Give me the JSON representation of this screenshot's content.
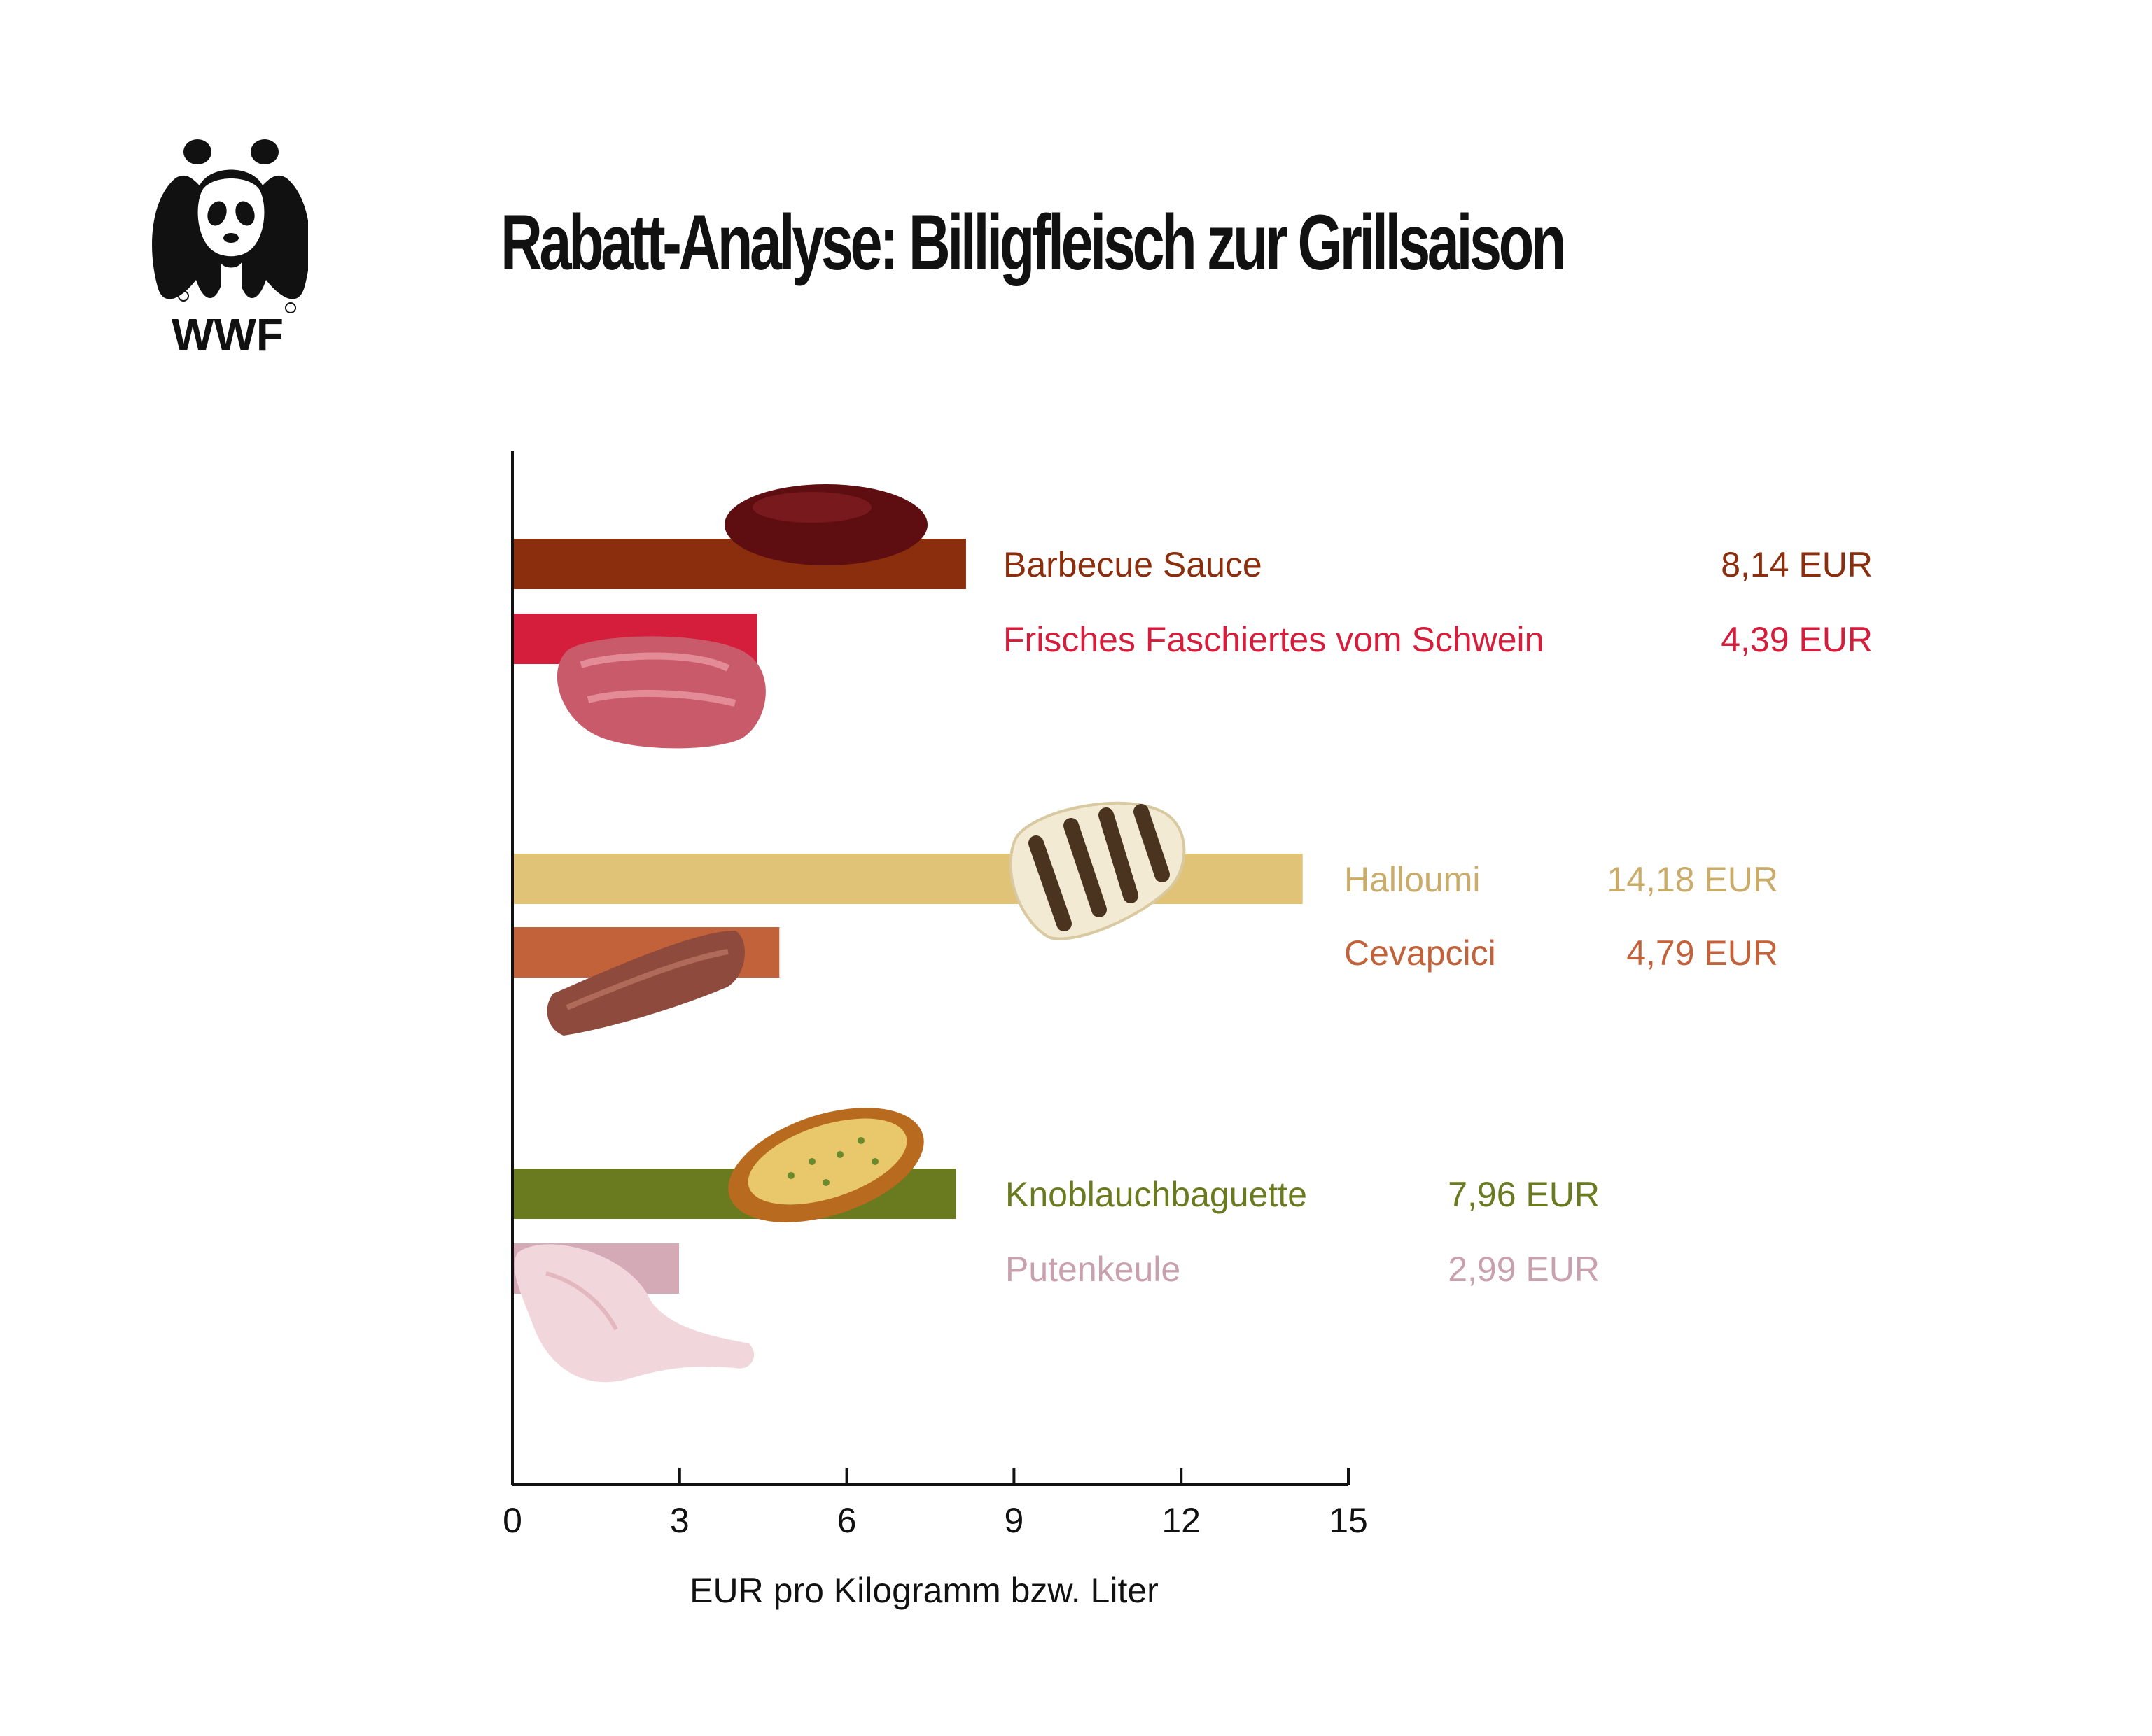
{
  "logo": {
    "text": "WWF",
    "icon": "panda-icon"
  },
  "chart_data": {
    "type": "bar",
    "orientation": "horizontal",
    "title": "Rabatt-Analyse: Billigfleisch zur Grillsaison",
    "xlabel": "EUR pro Kilogramm bzw. Liter",
    "ylabel": "",
    "xlim": [
      0,
      15
    ],
    "xticks": [
      "0",
      "3",
      "6",
      "9",
      "12",
      "15"
    ],
    "grid": false,
    "groups": [
      {
        "items": [
          {
            "label": "Barbecue Sauce",
            "value": 8.14,
            "value_label": "8,14 EUR",
            "color": "#8B2E0E",
            "image": "barbecue-sauce-icon"
          },
          {
            "label": "Frisches Faschiertes vom Schwein",
            "value": 4.39,
            "value_label": "4,39 EUR",
            "color": "#D51D3C",
            "image": "minced-pork-icon"
          }
        ]
      },
      {
        "items": [
          {
            "label": "Halloumi",
            "value": 14.18,
            "value_label": "14,18 EUR",
            "color": "#E0C377",
            "text_color": "#C9AB6A",
            "image": "halloumi-icon"
          },
          {
            "label": "Cevapcici",
            "value": 4.79,
            "value_label": "4,79 EUR",
            "color": "#C1623A",
            "image": "cevapcici-icon"
          }
        ]
      },
      {
        "items": [
          {
            "label": "Knoblauchbaguette",
            "value": 7.96,
            "value_label": "7,96 EUR",
            "color": "#6A7A1E",
            "image": "garlic-baguette-icon"
          },
          {
            "label": "Putenkeule",
            "value": 2.99,
            "value_label": "2,99 EUR",
            "color": "#D4AAB7",
            "text_color": "#C9A0AE",
            "image": "turkey-leg-icon"
          }
        ]
      }
    ]
  }
}
